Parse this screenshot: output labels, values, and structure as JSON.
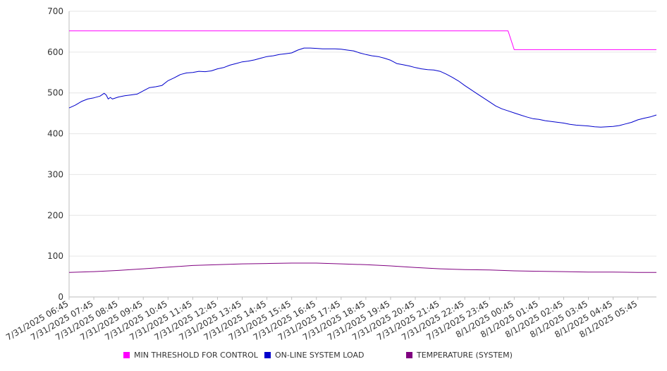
{
  "chart_data": {
    "type": "line",
    "title": "",
    "xlabel": "",
    "ylabel": "",
    "ylim": [
      0,
      700
    ],
    "yticks": [
      0,
      100,
      200,
      300,
      400,
      500,
      600,
      700
    ],
    "grid": true,
    "legend_position": "bottom",
    "x_tick_labels": [
      "7/31/2025 06:45",
      "7/31/2025 07:45",
      "7/31/2025 08:45",
      "7/31/2025 09:45",
      "7/31/2025 10:45",
      "7/31/2025 11:45",
      "7/31/2025 12:45",
      "7/31/2025 13:45",
      "7/31/2025 14:45",
      "7/31/2025 15:45",
      "7/31/2025 16:45",
      "7/31/2025 17:45",
      "7/31/2025 18:45",
      "7/31/2025 19:45",
      "7/31/2025 20:45",
      "7/31/2025 21:45",
      "7/31/2025 22:45",
      "7/31/2025 23:45",
      "8/1/2025 00:45",
      "8/1/2025 01:45",
      "8/1/2025 02:45",
      "8/1/2025 03:45",
      "8/1/2025 04:45",
      "8/1/2025 05:45"
    ],
    "x_start": "7/31/2025 06:45",
    "x_end": "8/1/2025 06:30",
    "series": [
      {
        "name": "MIN THRESHOLD FOR CONTROL",
        "color": "#ff00ff",
        "points": [
          [
            "7/31/2025 06:45",
            652
          ],
          [
            "8/1/2025 00:15",
            652
          ],
          [
            "8/1/2025 00:30",
            652
          ],
          [
            "8/1/2025 00:45",
            606
          ],
          [
            "8/1/2025 06:30",
            606
          ]
        ]
      },
      {
        "name": "ON-LINE SYSTEM LOAD",
        "color": "#0000cc",
        "points": [
          [
            "7/31/2025 06:45",
            463
          ],
          [
            "7/31/2025 07:00",
            470
          ],
          [
            "7/31/2025 07:15",
            479
          ],
          [
            "7/31/2025 07:30",
            485
          ],
          [
            "7/31/2025 07:45",
            488
          ],
          [
            "7/31/2025 08:00",
            492
          ],
          [
            "7/31/2025 08:10",
            499
          ],
          [
            "7/31/2025 08:15",
            495
          ],
          [
            "7/31/2025 08:20",
            485
          ],
          [
            "7/31/2025 08:25",
            489
          ],
          [
            "7/31/2025 08:30",
            485
          ],
          [
            "7/31/2025 08:45",
            490
          ],
          [
            "7/31/2025 09:00",
            493
          ],
          [
            "7/31/2025 09:15",
            495
          ],
          [
            "7/31/2025 09:30",
            497
          ],
          [
            "7/31/2025 09:45",
            505
          ],
          [
            "7/31/2025 10:00",
            513
          ],
          [
            "7/31/2025 10:15",
            515
          ],
          [
            "7/31/2025 10:30",
            518
          ],
          [
            "7/31/2025 10:45",
            530
          ],
          [
            "7/31/2025 11:00",
            537
          ],
          [
            "7/31/2025 11:15",
            545
          ],
          [
            "7/31/2025 11:30",
            549
          ],
          [
            "7/31/2025 11:45",
            550
          ],
          [
            "7/31/2025 12:00",
            553
          ],
          [
            "7/31/2025 12:15",
            552
          ],
          [
            "7/31/2025 12:30",
            554
          ],
          [
            "7/31/2025 12:45",
            559
          ],
          [
            "7/31/2025 13:00",
            562
          ],
          [
            "7/31/2025 13:15",
            568
          ],
          [
            "7/31/2025 13:30",
            572
          ],
          [
            "7/31/2025 13:45",
            576
          ],
          [
            "7/31/2025 14:00",
            578
          ],
          [
            "7/31/2025 14:15",
            581
          ],
          [
            "7/31/2025 14:30",
            585
          ],
          [
            "7/31/2025 14:45",
            589
          ],
          [
            "7/31/2025 15:00",
            591
          ],
          [
            "7/31/2025 15:15",
            594
          ],
          [
            "7/31/2025 15:30",
            596
          ],
          [
            "7/31/2025 15:45",
            598
          ],
          [
            "7/31/2025 16:00",
            605
          ],
          [
            "7/31/2025 16:15",
            610
          ],
          [
            "7/31/2025 16:30",
            610
          ],
          [
            "7/31/2025 16:45",
            609
          ],
          [
            "7/31/2025 17:00",
            608
          ],
          [
            "7/31/2025 17:15",
            608
          ],
          [
            "7/31/2025 17:30",
            608
          ],
          [
            "7/31/2025 17:45",
            607
          ],
          [
            "7/31/2025 18:00",
            605
          ],
          [
            "7/31/2025 18:15",
            603
          ],
          [
            "7/31/2025 18:30",
            598
          ],
          [
            "7/31/2025 18:45",
            594
          ],
          [
            "7/31/2025 19:00",
            591
          ],
          [
            "7/31/2025 19:15",
            589
          ],
          [
            "7/31/2025 19:30",
            585
          ],
          [
            "7/31/2025 19:45",
            580
          ],
          [
            "7/31/2025 20:00",
            572
          ],
          [
            "7/31/2025 20:15",
            569
          ],
          [
            "7/31/2025 20:30",
            566
          ],
          [
            "7/31/2025 20:45",
            562
          ],
          [
            "7/31/2025 21:00",
            559
          ],
          [
            "7/31/2025 21:15",
            557
          ],
          [
            "7/31/2025 21:30",
            556
          ],
          [
            "7/31/2025 21:45",
            553
          ],
          [
            "7/31/2025 22:00",
            546
          ],
          [
            "7/31/2025 22:15",
            538
          ],
          [
            "7/31/2025 22:30",
            529
          ],
          [
            "7/31/2025 22:45",
            518
          ],
          [
            "7/31/2025 23:00",
            508
          ],
          [
            "7/31/2025 23:15",
            498
          ],
          [
            "7/31/2025 23:30",
            488
          ],
          [
            "7/31/2025 23:45",
            478
          ],
          [
            "8/1/2025 00:00",
            468
          ],
          [
            "8/1/2025 00:15",
            461
          ],
          [
            "8/1/2025 00:30",
            456
          ],
          [
            "8/1/2025 00:45",
            451
          ],
          [
            "8/1/2025 01:00",
            446
          ],
          [
            "8/1/2025 01:15",
            441
          ],
          [
            "8/1/2025 01:30",
            437
          ],
          [
            "8/1/2025 01:45",
            435
          ],
          [
            "8/1/2025 02:00",
            432
          ],
          [
            "8/1/2025 02:15",
            430
          ],
          [
            "8/1/2025 02:30",
            428
          ],
          [
            "8/1/2025 02:45",
            426
          ],
          [
            "8/1/2025 03:00",
            423
          ],
          [
            "8/1/2025 03:15",
            421
          ],
          [
            "8/1/2025 03:30",
            420
          ],
          [
            "8/1/2025 03:45",
            419
          ],
          [
            "8/1/2025 04:00",
            417
          ],
          [
            "8/1/2025 04:15",
            416
          ],
          [
            "8/1/2025 04:30",
            417
          ],
          [
            "8/1/2025 04:45",
            418
          ],
          [
            "8/1/2025 05:00",
            420
          ],
          [
            "8/1/2025 05:15",
            424
          ],
          [
            "8/1/2025 05:30",
            428
          ],
          [
            "8/1/2025 05:45",
            434
          ],
          [
            "8/1/2025 06:00",
            438
          ],
          [
            "8/1/2025 06:15",
            441
          ],
          [
            "8/1/2025 06:30",
            446
          ]
        ]
      },
      {
        "name": "TEMPERATURE (SYSTEM)",
        "color": "#800080",
        "points": [
          [
            "7/31/2025 06:45",
            60
          ],
          [
            "7/31/2025 07:45",
            62
          ],
          [
            "7/31/2025 08:45",
            65
          ],
          [
            "7/31/2025 09:45",
            69
          ],
          [
            "7/31/2025 10:45",
            73
          ],
          [
            "7/31/2025 11:45",
            77
          ],
          [
            "7/31/2025 12:45",
            79
          ],
          [
            "7/31/2025 13:45",
            81
          ],
          [
            "7/31/2025 14:45",
            82
          ],
          [
            "7/31/2025 15:45",
            83
          ],
          [
            "7/31/2025 16:45",
            83
          ],
          [
            "7/31/2025 17:45",
            81
          ],
          [
            "7/31/2025 18:45",
            79
          ],
          [
            "7/31/2025 19:45",
            76
          ],
          [
            "7/31/2025 20:45",
            72
          ],
          [
            "7/31/2025 21:45",
            69
          ],
          [
            "7/31/2025 22:45",
            67
          ],
          [
            "7/31/2025 23:45",
            66
          ],
          [
            "8/1/2025 00:45",
            64
          ],
          [
            "8/1/2025 01:45",
            63
          ],
          [
            "8/1/2025 02:45",
            62
          ],
          [
            "8/1/2025 03:45",
            61
          ],
          [
            "8/1/2025 04:45",
            61
          ],
          [
            "8/1/2025 05:45",
            60
          ],
          [
            "8/1/2025 06:30",
            60
          ]
        ]
      }
    ]
  }
}
